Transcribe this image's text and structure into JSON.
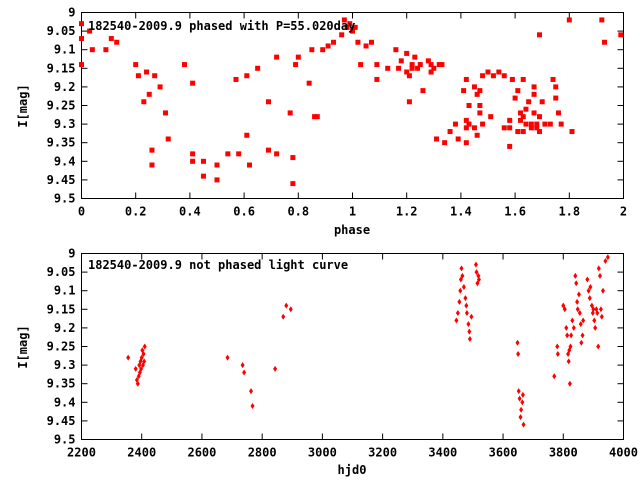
{
  "chart_data": [
    {
      "type": "scatter",
      "title": "182540-2009.9 phased with P=55.020day",
      "xlabel": "phase",
      "ylabel": "I[mag]",
      "xlim": [
        0,
        2
      ],
      "ylim": [
        9.5,
        9.0
      ],
      "y_inverted": true,
      "grid": false,
      "legend": "none",
      "marker": "filled-square",
      "marker_color": "#ff0000",
      "xticks": [
        0,
        0.2,
        0.4,
        0.6,
        0.8,
        1,
        1.2,
        1.4,
        1.6,
        1.8,
        2
      ],
      "xtick_labels": [
        "0",
        "0.2",
        "0.4",
        "0.6",
        "0.8",
        "1",
        "1.2",
        "1.4",
        "1.6",
        "1.8",
        "2"
      ],
      "yticks": [
        9,
        9.05,
        9.1,
        9.15,
        9.2,
        9.25,
        9.3,
        9.35,
        9.4,
        9.45,
        9.5
      ],
      "ytick_labels": [
        "9",
        "9.05",
        "9.1",
        "9.15",
        "9.2",
        "9.25",
        "9.3",
        "9.35",
        "9.4",
        "9.45",
        "9.5"
      ],
      "points": [
        [
          0.0,
          9.03
        ],
        [
          0.0,
          9.07
        ],
        [
          0.0,
          9.14
        ],
        [
          0.03,
          9.05
        ],
        [
          0.04,
          9.1
        ],
        [
          0.09,
          9.1
        ],
        [
          0.11,
          9.07
        ],
        [
          0.13,
          9.08
        ],
        [
          0.2,
          9.14
        ],
        [
          0.21,
          9.17
        ],
        [
          0.23,
          9.24
        ],
        [
          0.24,
          9.16
        ],
        [
          0.25,
          9.22
        ],
        [
          0.26,
          9.37
        ],
        [
          0.26,
          9.41
        ],
        [
          0.27,
          9.17
        ],
        [
          0.29,
          9.2
        ],
        [
          0.31,
          9.27
        ],
        [
          0.32,
          9.34
        ],
        [
          0.38,
          9.14
        ],
        [
          0.41,
          9.19
        ],
        [
          0.41,
          9.38
        ],
        [
          0.41,
          9.4
        ],
        [
          0.45,
          9.4
        ],
        [
          0.45,
          9.44
        ],
        [
          0.5,
          9.41
        ],
        [
          0.5,
          9.45
        ],
        [
          0.54,
          9.38
        ],
        [
          0.57,
          9.18
        ],
        [
          0.58,
          9.38
        ],
        [
          0.61,
          9.17
        ],
        [
          0.61,
          9.33
        ],
        [
          0.62,
          9.41
        ],
        [
          0.65,
          9.15
        ],
        [
          0.69,
          9.24
        ],
        [
          0.69,
          9.37
        ],
        [
          0.72,
          9.38
        ],
        [
          0.72,
          9.12
        ],
        [
          0.77,
          9.27
        ],
        [
          0.78,
          9.39
        ],
        [
          0.78,
          9.46
        ],
        [
          0.79,
          9.14
        ],
        [
          0.8,
          9.12
        ],
        [
          0.84,
          9.19
        ],
        [
          0.85,
          9.1
        ],
        [
          0.86,
          9.28
        ],
        [
          0.87,
          9.28
        ],
        [
          0.89,
          9.1
        ],
        [
          0.91,
          9.09
        ],
        [
          0.93,
          9.08
        ],
        [
          0.96,
          9.06
        ],
        [
          0.97,
          9.02
        ],
        [
          0.98,
          9.04
        ],
        [
          0.99,
          9.03
        ],
        [
          1.0,
          9.05
        ],
        [
          1.01,
          9.04
        ],
        [
          1.02,
          9.08
        ],
        [
          1.03,
          9.14
        ],
        [
          1.05,
          9.09
        ],
        [
          1.07,
          9.08
        ],
        [
          1.09,
          9.14
        ],
        [
          1.09,
          9.18
        ],
        [
          1.13,
          9.15
        ],
        [
          1.16,
          9.1
        ],
        [
          1.17,
          9.15
        ],
        [
          1.18,
          9.13
        ],
        [
          1.2,
          9.11
        ],
        [
          1.2,
          9.16
        ],
        [
          1.21,
          9.17
        ],
        [
          1.21,
          9.24
        ],
        [
          1.22,
          9.14
        ],
        [
          1.22,
          9.15
        ],
        [
          1.23,
          9.12
        ],
        [
          1.24,
          9.15
        ],
        [
          1.25,
          9.14
        ],
        [
          1.26,
          9.21
        ],
        [
          1.28,
          9.13
        ],
        [
          1.29,
          9.14
        ],
        [
          1.29,
          9.16
        ],
        [
          1.3,
          9.15
        ],
        [
          1.31,
          9.34
        ],
        [
          1.32,
          9.14
        ],
        [
          1.33,
          9.14
        ],
        [
          1.34,
          9.35
        ],
        [
          1.36,
          9.32
        ],
        [
          1.38,
          9.3
        ],
        [
          1.39,
          9.34
        ],
        [
          1.41,
          9.21
        ],
        [
          1.42,
          9.18
        ],
        [
          1.42,
          9.29
        ],
        [
          1.42,
          9.35
        ],
        [
          1.43,
          9.25
        ],
        [
          1.43,
          9.3
        ],
        [
          1.45,
          9.2
        ],
        [
          1.45,
          9.31
        ],
        [
          1.46,
          9.22
        ],
        [
          1.46,
          9.33
        ],
        [
          1.47,
          9.21
        ],
        [
          1.47,
          9.25
        ],
        [
          1.47,
          9.27
        ],
        [
          1.48,
          9.17
        ],
        [
          1.48,
          9.3
        ],
        [
          1.5,
          9.16
        ],
        [
          1.51,
          9.28
        ],
        [
          1.52,
          9.17
        ],
        [
          1.54,
          9.16
        ],
        [
          1.56,
          9.17
        ],
        [
          1.58,
          9.29
        ],
        [
          1.58,
          9.31
        ],
        [
          1.58,
          9.36
        ],
        [
          1.59,
          9.18
        ],
        [
          1.6,
          9.23
        ],
        [
          1.61,
          9.32
        ],
        [
          1.61,
          9.21
        ],
        [
          1.62,
          9.27
        ],
        [
          1.62,
          9.29
        ],
        [
          1.63,
          9.18
        ],
        [
          1.63,
          9.28
        ],
        [
          1.64,
          9.26
        ],
        [
          1.64,
          9.3
        ],
        [
          1.65,
          9.24
        ],
        [
          1.66,
          9.3
        ],
        [
          1.66,
          9.31
        ],
        [
          1.67,
          9.2
        ],
        [
          1.67,
          9.22
        ],
        [
          1.67,
          9.27
        ],
        [
          1.68,
          9.31
        ],
        [
          1.68,
          9.3
        ],
        [
          1.69,
          9.06
        ],
        [
          1.69,
          9.28
        ],
        [
          1.7,
          9.24
        ],
        [
          1.71,
          9.3
        ],
        [
          1.73,
          9.3
        ],
        [
          1.74,
          9.18
        ],
        [
          1.75,
          9.2
        ],
        [
          1.75,
          9.23
        ],
        [
          1.76,
          9.27
        ],
        [
          1.77,
          9.3
        ],
        [
          1.8,
          9.02
        ],
        [
          1.81,
          9.32
        ],
        [
          1.92,
          9.02
        ],
        [
          1.93,
          9.08
        ],
        [
          1.99,
          9.06
        ],
        [
          1.63,
          9.32
        ],
        [
          1.42,
          9.31
        ],
        [
          1.56,
          9.31
        ],
        [
          1.69,
          9.32
        ]
      ]
    },
    {
      "type": "scatter",
      "title": "182540-2009.9 not phased light curve",
      "xlabel": "hjd0",
      "ylabel": "I[mag]",
      "xlim": [
        2200,
        4000
      ],
      "ylim": [
        9.5,
        9.0
      ],
      "y_inverted": true,
      "grid": false,
      "legend": "none",
      "marker": "filled-diamond",
      "marker_color": "#ff0000",
      "xticks": [
        2200,
        2400,
        2600,
        2800,
        3000,
        3200,
        3400,
        3600,
        3800,
        4000
      ],
      "xtick_labels": [
        "2200",
        "2400",
        "2600",
        "2800",
        "3000",
        "3200",
        "3400",
        "3600",
        "3800",
        "4000"
      ],
      "yticks": [
        9,
        9.05,
        9.1,
        9.15,
        9.2,
        9.25,
        9.3,
        9.35,
        9.4,
        9.45,
        9.5
      ],
      "ytick_labels": [
        "9",
        "9.05",
        "9.1",
        "9.15",
        "9.2",
        "9.25",
        "9.3",
        "9.35",
        "9.4",
        "9.45",
        "9.5"
      ],
      "points": [
        [
          2355,
          9.28
        ],
        [
          2380,
          9.31
        ],
        [
          2384,
          9.34
        ],
        [
          2387,
          9.35
        ],
        [
          2390,
          9.33
        ],
        [
          2392,
          9.3
        ],
        [
          2394,
          9.32
        ],
        [
          2396,
          9.29
        ],
        [
          2398,
          9.31
        ],
        [
          2400,
          9.28
        ],
        [
          2402,
          9.26
        ],
        [
          2404,
          9.3
        ],
        [
          2406,
          9.27
        ],
        [
          2408,
          9.29
        ],
        [
          2410,
          9.25
        ],
        [
          2685,
          9.28
        ],
        [
          2735,
          9.3
        ],
        [
          2740,
          9.32
        ],
        [
          2763,
          9.37
        ],
        [
          2768,
          9.41
        ],
        [
          2843,
          9.31
        ],
        [
          2870,
          9.17
        ],
        [
          2880,
          9.14
        ],
        [
          2895,
          9.15
        ],
        [
          3445,
          9.18
        ],
        [
          3450,
          9.16
        ],
        [
          3455,
          9.13
        ],
        [
          3458,
          9.1
        ],
        [
          3460,
          9.07
        ],
        [
          3462,
          9.04
        ],
        [
          3465,
          9.06
        ],
        [
          3470,
          9.09
        ],
        [
          3475,
          9.12
        ],
        [
          3478,
          9.14
        ],
        [
          3480,
          9.16
        ],
        [
          3485,
          9.19
        ],
        [
          3488,
          9.21
        ],
        [
          3490,
          9.23
        ],
        [
          3495,
          9.17
        ],
        [
          3510,
          9.03
        ],
        [
          3512,
          9.05
        ],
        [
          3515,
          9.08
        ],
        [
          3518,
          9.06
        ],
        [
          3520,
          9.07
        ],
        [
          3648,
          9.24
        ],
        [
          3650,
          9.27
        ],
        [
          3652,
          9.37
        ],
        [
          3655,
          9.39
        ],
        [
          3658,
          9.44
        ],
        [
          3660,
          9.42
        ],
        [
          3664,
          9.4
        ],
        [
          3666,
          9.38
        ],
        [
          3668,
          9.46
        ],
        [
          3770,
          9.33
        ],
        [
          3780,
          9.25
        ],
        [
          3782,
          9.27
        ],
        [
          3800,
          9.14
        ],
        [
          3805,
          9.15
        ],
        [
          3810,
          9.2
        ],
        [
          3813,
          9.22
        ],
        [
          3816,
          9.27
        ],
        [
          3818,
          9.29
        ],
        [
          3820,
          9.26
        ],
        [
          3822,
          9.35
        ],
        [
          3824,
          9.25
        ],
        [
          3826,
          9.22
        ],
        [
          3830,
          9.18
        ],
        [
          3835,
          9.2
        ],
        [
          3840,
          9.06
        ],
        [
          3843,
          9.08
        ],
        [
          3846,
          9.13
        ],
        [
          3848,
          9.15
        ],
        [
          3852,
          9.11
        ],
        [
          3855,
          9.16
        ],
        [
          3858,
          9.19
        ],
        [
          3860,
          9.24
        ],
        [
          3864,
          9.22
        ],
        [
          3866,
          9.18
        ],
        [
          3880,
          9.07
        ],
        [
          3884,
          9.1
        ],
        [
          3888,
          9.12
        ],
        [
          3890,
          9.09
        ],
        [
          3895,
          9.14
        ],
        [
          3898,
          9.16
        ],
        [
          3900,
          9.15
        ],
        [
          3903,
          9.18
        ],
        [
          3906,
          9.2
        ],
        [
          3910,
          9.15
        ],
        [
          3913,
          9.16
        ],
        [
          3916,
          9.25
        ],
        [
          3918,
          9.04
        ],
        [
          3922,
          9.06
        ],
        [
          3925,
          9.15
        ],
        [
          3928,
          9.17
        ],
        [
          3932,
          9.1
        ],
        [
          3940,
          9.02
        ],
        [
          3948,
          9.01
        ]
      ]
    }
  ]
}
